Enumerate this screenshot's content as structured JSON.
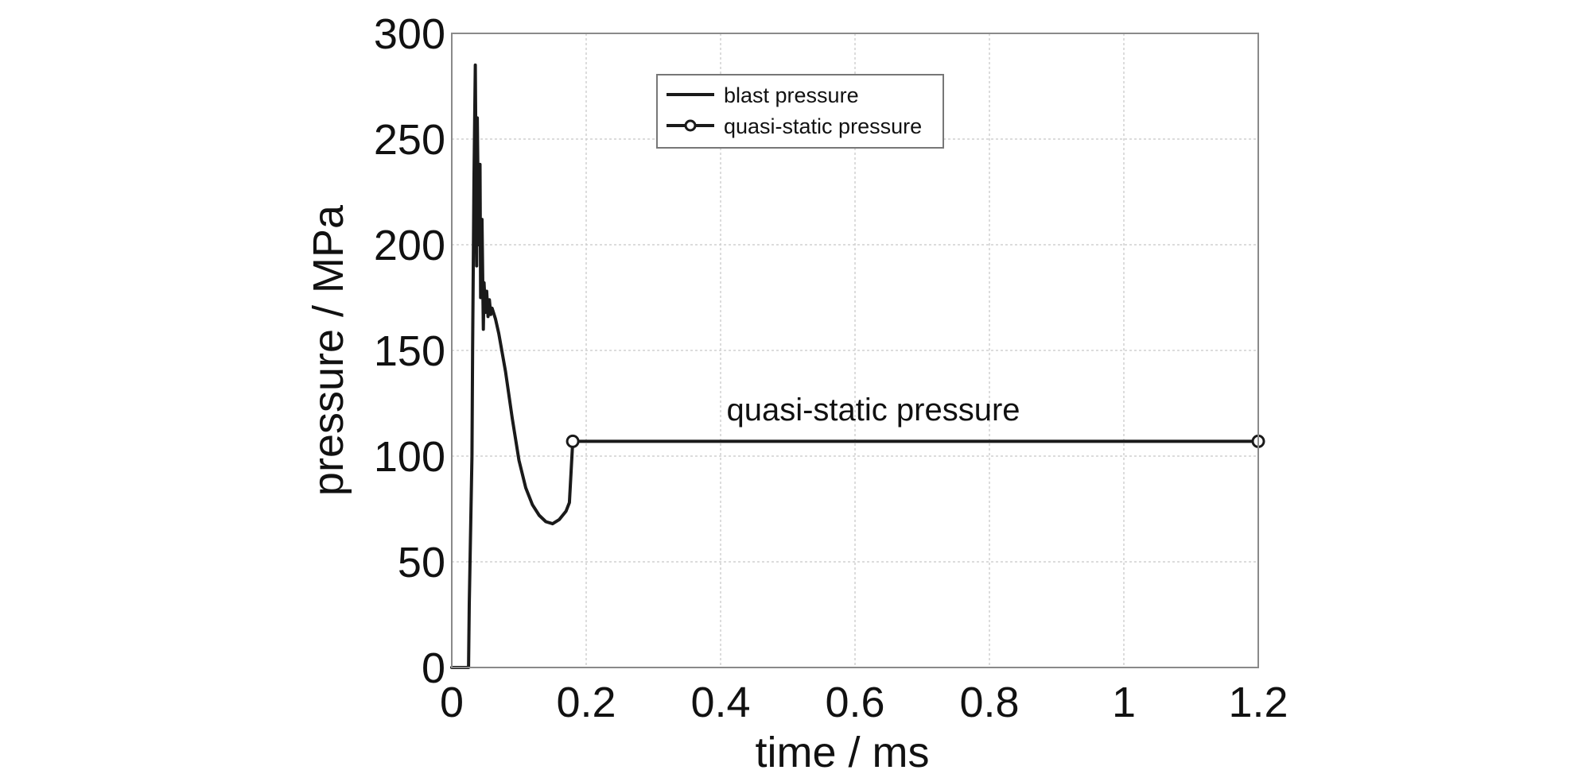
{
  "chart_data": {
    "type": "line",
    "title": "",
    "xlabel": "time / ms",
    "ylabel": "pressure / MPa",
    "xlim": [
      0,
      1.2
    ],
    "ylim": [
      0,
      300
    ],
    "xticks": [
      "0",
      "0.2",
      "0.4",
      "0.6",
      "0.8",
      "1",
      "1.2"
    ],
    "yticks": [
      "0",
      "50",
      "100",
      "150",
      "200",
      "250",
      "300"
    ],
    "grid": true,
    "legend_position": "top-center",
    "series": [
      {
        "name": "blast pressure",
        "color": "#1a1a1a",
        "marker": "none",
        "x": [
          0,
          0.025,
          0.026,
          0.03,
          0.031,
          0.033,
          0.035,
          0.037,
          0.038,
          0.04,
          0.042,
          0.043,
          0.045,
          0.047,
          0.048,
          0.05,
          0.052,
          0.054,
          0.056,
          0.058,
          0.06,
          0.065,
          0.07,
          0.08,
          0.09,
          0.1,
          0.11,
          0.12,
          0.13,
          0.14,
          0.15,
          0.16,
          0.17,
          0.175,
          0.18
        ],
        "y": [
          0,
          0,
          30,
          100,
          150,
          230,
          285,
          190,
          260,
          200,
          238,
          175,
          212,
          160,
          182,
          168,
          178,
          166,
          174,
          167,
          170,
          165,
          158,
          140,
          118,
          98,
          85,
          77,
          72,
          69,
          68,
          70,
          74,
          78,
          107
        ]
      },
      {
        "name": "quasi-static pressure",
        "color": "#1a1a1a",
        "marker": "circle",
        "x": [
          0.18,
          1.2
        ],
        "y": [
          107,
          107
        ]
      }
    ],
    "annotations": [
      {
        "text": "quasi-static pressure",
        "x": 0.4,
        "y": 119
      }
    ]
  }
}
